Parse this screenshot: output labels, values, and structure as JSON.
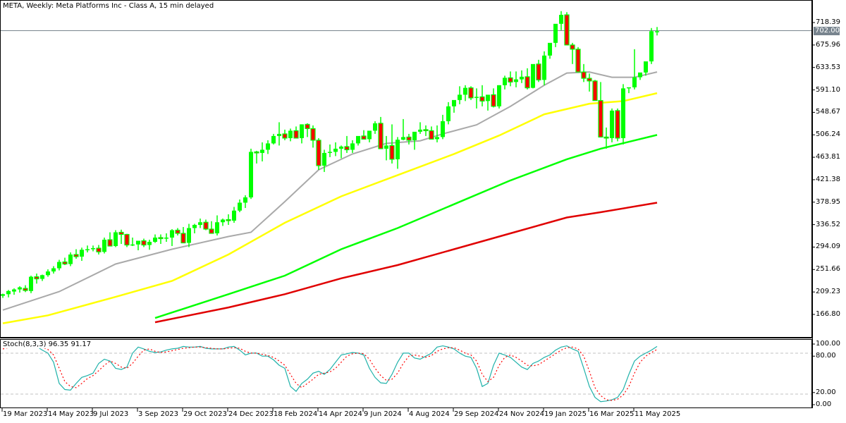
{
  "header": {
    "title": "META, Weekly:  Meta Platforms Inc - Class A, 15 min delayed"
  },
  "current_price": {
    "label": "702.00",
    "value": 702.0,
    "line_color": "#78848e"
  },
  "price_axis": {
    "ticks": [
      "718.39",
      "675.96",
      "633.53",
      "591.10",
      "548.67",
      "506.24",
      "463.81",
      "421.38",
      "378.95",
      "336.52",
      "294.09",
      "251.66",
      "209.23",
      "166.80"
    ]
  },
  "stoch_axis": {
    "ticks": [
      "100.00",
      "80.00",
      "20.00",
      "0.00"
    ]
  },
  "time_axis": {
    "ticks": [
      "19 Mar 2023",
      "14 May 2023",
      "9 Jul 2023",
      "3 Sep 2023",
      "29 Oct 2023",
      "24 Dec 2023",
      "18 Feb 2024",
      "14 Apr 2024",
      "9 Jun 2024",
      "4 Aug 2024",
      "29 Sep 2024",
      "24 Nov 2024",
      "19 Jan 2025",
      "16 Mar 2025",
      "11 May 2025"
    ]
  },
  "indicator": {
    "label": "Stoch(8,3,3) 96.35 91.17",
    "main": 96.35,
    "signal": 91.17,
    "levels": [
      80,
      20
    ]
  },
  "colors": {
    "bull": "#00ff00",
    "bear_body": "#ff0000",
    "bear_outline": "#00ff00",
    "ma_fast": "#a9a9a9",
    "ma_mid": "#ffff00",
    "ma_slow": "#00ff00",
    "ma_long": "#e00000",
    "stoch_main": "#20b2aa",
    "stoch_signal": "#ff0000",
    "grid_dash": "#c0c0c0"
  },
  "chart_data": [
    {
      "type": "candlestick",
      "title": "META, Weekly: Meta Platforms Inc - Class A, 15 min delayed",
      "xlabel": "",
      "ylabel": "",
      "ylim": [
        130,
        740
      ],
      "x_start": "19 Mar 2023",
      "interval": "weekly",
      "ohlc": [
        [
          202,
          206,
          198,
          205
        ],
        [
          205,
          213,
          199,
          211
        ],
        [
          210,
          216,
          204,
          214
        ],
        [
          214,
          220,
          208,
          218
        ],
        [
          216,
          222,
          209,
          212
        ],
        [
          211,
          240,
          207,
          238
        ],
        [
          238,
          244,
          225,
          234
        ],
        [
          234,
          242,
          230,
          241
        ],
        [
          241,
          252,
          238,
          248
        ],
        [
          248,
          258,
          244,
          254
        ],
        [
          254,
          270,
          250,
          266
        ],
        [
          266,
          274,
          260,
          262
        ],
        [
          262,
          284,
          258,
          280
        ],
        [
          280,
          290,
          272,
          276
        ],
        [
          276,
          293,
          268,
          289
        ],
        [
          289,
          297,
          284,
          290
        ],
        [
          290,
          297,
          286,
          292
        ],
        [
          292,
          298,
          280,
          285
        ],
        [
          285,
          312,
          282,
          308
        ],
        [
          308,
          322,
          302,
          296
        ],
        [
          296,
          326,
          294,
          322
        ],
        [
          322,
          327,
          300,
          318
        ],
        [
          318,
          319,
          294,
          298
        ],
        [
          298,
          312,
          296,
          299
        ],
        [
          299,
          306,
          288,
          306
        ],
        [
          306,
          310,
          294,
          298
        ],
        [
          298,
          308,
          289,
          304
        ],
        [
          304,
          318,
          302,
          312
        ],
        [
          312,
          318,
          300,
          310
        ],
        [
          310,
          320,
          304,
          312
        ],
        [
          312,
          328,
          296,
          326
        ],
        [
          326,
          330,
          316,
          320
        ],
        [
          320,
          332,
          314,
          302
        ],
        [
          302,
          338,
          294,
          330
        ],
        [
          330,
          338,
          320,
          336
        ],
        [
          336,
          348,
          330,
          341
        ],
        [
          341,
          346,
          326,
          328
        ],
        [
          328,
          343,
          320,
          320
        ],
        [
          320,
          354,
          316,
          341
        ],
        [
          341,
          348,
          334,
          346
        ],
        [
          346,
          356,
          336,
          344
        ],
        [
          344,
          370,
          340,
          363
        ],
        [
          363,
          384,
          360,
          378
        ],
        [
          378,
          392,
          368,
          388
        ],
        [
          388,
          480,
          385,
          474
        ],
        [
          474,
          476,
          452,
          472
        ],
        [
          472,
          492,
          456,
          478
        ],
        [
          478,
          496,
          470,
          490
        ],
        [
          490,
          508,
          488,
          504
        ],
        [
          504,
          530,
          486,
          508
        ],
        [
          508,
          516,
          496,
          500
        ],
        [
          500,
          518,
          494,
          514
        ],
        [
          514,
          522,
          502,
          500
        ],
        [
          500,
          526,
          490,
          526
        ],
        [
          526,
          528,
          502,
          518
        ],
        [
          518,
          524,
          482,
          496
        ],
        [
          496,
          500,
          440,
          448
        ],
        [
          448,
          478,
          436,
          472
        ],
        [
          472,
          488,
          464,
          474
        ],
        [
          474,
          492,
          466,
          480
        ],
        [
          480,
          486,
          462,
          484
        ],
        [
          484,
          504,
          472,
          478
        ],
        [
          478,
          496,
          472,
          490
        ],
        [
          490,
          502,
          486,
          504
        ],
        [
          504,
          515,
          498,
          498
        ],
        [
          498,
          512,
          492,
          514
        ],
        [
          514,
          532,
          508,
          528
        ],
        [
          528,
          540,
          498,
          480
        ],
        [
          480,
          504,
          458,
          486
        ],
        [
          486,
          526,
          452,
          460
        ],
        [
          460,
          502,
          442,
          497
        ],
        [
          497,
          536,
          496,
          502
        ],
        [
          502,
          508,
          488,
          496
        ],
        [
          496,
          500,
          478,
          512
        ],
        [
          512,
          530,
          508,
          516
        ],
        [
          516,
          524,
          504,
          514
        ],
        [
          514,
          522,
          498,
          498
        ],
        [
          498,
          524,
          492,
          502
        ],
        [
          502,
          544,
          498,
          532
        ],
        [
          532,
          568,
          526,
          560
        ],
        [
          560,
          570,
          548,
          572
        ],
        [
          572,
          598,
          564,
          582
        ],
        [
          582,
          600,
          570,
          595
        ],
        [
          595,
          598,
          572,
          576
        ],
        [
          576,
          594,
          556,
          578
        ],
        [
          578,
          600,
          560,
          570
        ],
        [
          570,
          580,
          552,
          582
        ],
        [
          582,
          594,
          558,
          560
        ],
        [
          560,
          600,
          556,
          600
        ],
        [
          600,
          618,
          592,
          614
        ],
        [
          614,
          626,
          598,
          606
        ],
        [
          606,
          626,
          596,
          611
        ],
        [
          611,
          628,
          604,
          616
        ],
        [
          616,
          632,
          592,
          595
        ],
        [
          595,
          634,
          594,
          640
        ],
        [
          640,
          648,
          606,
          610
        ],
        [
          610,
          664,
          600,
          656
        ],
        [
          656,
          676,
          650,
          680
        ],
        [
          680,
          708,
          672,
          716
        ],
        [
          716,
          740,
          704,
          733
        ],
        [
          733,
          738,
          710,
          676
        ],
        [
          676,
          680,
          640,
          668
        ],
        [
          668,
          672,
          634,
          625
        ],
        [
          625,
          640,
          606,
          613
        ],
        [
          613,
          622,
          588,
          608
        ],
        [
          608,
          610,
          584,
          571
        ],
        [
          571,
          606,
          566,
          502
        ],
        [
          502,
          520,
          480,
          500
        ],
        [
          500,
          556,
          492,
          552
        ],
        [
          552,
          556,
          494,
          500
        ],
        [
          500,
          602,
          488,
          594
        ],
        [
          594,
          596,
          585,
          596
        ],
        [
          596,
          668,
          592,
          615
        ],
        [
          615,
          622,
          610,
          624
        ],
        [
          624,
          640,
          618,
          645
        ],
        [
          645,
          708,
          640,
          702
        ],
        [
          702,
          710,
          694,
          702
        ]
      ],
      "series": [
        {
          "name": "MA fast (gray)",
          "color": "#a9a9a9",
          "start_index": 0,
          "values_desc": "from ~175 rising to ~625"
        },
        {
          "name": "MA mid (yellow)",
          "color": "#ffff00",
          "start_index": 0,
          "values_desc": "from ~150 rising to ~585"
        },
        {
          "name": "MA slow (green)",
          "color": "#00ff00",
          "start_index": 27,
          "values_desc": "from ~160 rising to ~506"
        },
        {
          "name": "MA long (red)",
          "color": "#e00000",
          "start_index": 27,
          "values_desc": "from ~153 rising to ~378"
        }
      ],
      "ma_points": {
        "gray": [
          [
            0,
            175
          ],
          [
            10,
            210
          ],
          [
            20,
            262
          ],
          [
            30,
            290
          ],
          [
            40,
            314
          ],
          [
            44,
            322
          ],
          [
            50,
            380
          ],
          [
            56,
            440
          ],
          [
            62,
            470
          ],
          [
            68,
            490
          ],
          [
            74,
            495
          ],
          [
            78,
            508
          ],
          [
            84,
            525
          ],
          [
            90,
            560
          ],
          [
            96,
            600
          ],
          [
            100,
            623
          ],
          [
            104,
            625
          ],
          [
            108,
            615
          ],
          [
            112,
            615
          ],
          [
            116,
            625
          ]
        ],
        "yellow": [
          [
            0,
            150
          ],
          [
            8,
            165
          ],
          [
            20,
            200
          ],
          [
            30,
            230
          ],
          [
            40,
            280
          ],
          [
            50,
            340
          ],
          [
            60,
            390
          ],
          [
            70,
            430
          ],
          [
            80,
            470
          ],
          [
            88,
            505
          ],
          [
            96,
            545
          ],
          [
            104,
            565
          ],
          [
            110,
            570
          ],
          [
            116,
            585
          ]
        ],
        "green": [
          [
            27,
            160
          ],
          [
            40,
            205
          ],
          [
            50,
            240
          ],
          [
            60,
            290
          ],
          [
            70,
            330
          ],
          [
            80,
            375
          ],
          [
            90,
            420
          ],
          [
            100,
            460
          ],
          [
            106,
            480
          ],
          [
            116,
            506
          ]
        ],
        "red": [
          [
            27,
            152
          ],
          [
            40,
            180
          ],
          [
            50,
            205
          ],
          [
            60,
            235
          ],
          [
            70,
            260
          ],
          [
            80,
            290
          ],
          [
            90,
            320
          ],
          [
            100,
            350
          ],
          [
            106,
            360
          ],
          [
            116,
            378
          ]
        ]
      }
    },
    {
      "type": "line",
      "title": "Stoch(8,3,3)",
      "ylim": [
        0,
        100
      ],
      "levels": [
        20,
        80
      ],
      "series": [
        {
          "name": "%K",
          "color": "#20b2aa",
          "values": [
            95,
            97,
            99,
            100,
            99,
            98,
            96,
            90,
            85,
            70,
            35,
            25,
            24,
            35,
            45,
            48,
            52,
            68,
            75,
            72,
            60,
            58,
            62,
            85,
            95,
            92,
            88,
            86,
            87,
            90,
            92,
            93,
            96,
            95,
            95,
            96,
            93,
            92,
            92,
            92,
            95,
            96,
            90,
            82,
            85,
            85,
            80,
            80,
            74,
            65,
            60,
            30,
            22,
            35,
            42,
            52,
            55,
            50,
            58,
            70,
            82,
            84,
            86,
            85,
            82,
            60,
            45,
            36,
            35,
            50,
            70,
            85,
            85,
            77,
            75,
            80,
            85,
            95,
            97,
            95,
            92,
            85,
            80,
            78,
            60,
            30,
            35,
            65,
            85,
            82,
            78,
            70,
            62,
            58,
            68,
            72,
            78,
            82,
            90,
            95,
            97,
            92,
            88,
            60,
            30,
            12,
            5,
            6,
            8,
            12,
            25,
            50,
            72,
            80,
            85,
            90,
            96
          ]
        },
        {
          "name": "%D",
          "color": "#ff0000",
          "values": [
            92,
            94,
            96,
            98,
            99,
            98,
            97,
            95,
            91,
            82,
            60,
            38,
            30,
            28,
            35,
            43,
            48,
            56,
            65,
            72,
            68,
            62,
            60,
            68,
            80,
            90,
            92,
            88,
            86,
            87,
            89,
            91,
            93,
            94,
            95,
            95,
            94,
            93,
            92,
            92,
            93,
            94,
            93,
            88,
            85,
            85,
            83,
            81,
            78,
            72,
            65,
            50,
            35,
            28,
            35,
            42,
            50,
            52,
            54,
            60,
            70,
            80,
            84,
            85,
            84,
            75,
            60,
            48,
            40,
            42,
            52,
            68,
            80,
            82,
            80,
            78,
            81,
            88,
            92,
            94,
            94,
            90,
            85,
            82,
            72,
            50,
            38,
            45,
            65,
            78,
            82,
            78,
            72,
            65,
            64,
            66,
            72,
            78,
            84,
            90,
            94,
            95,
            92,
            80,
            55,
            28,
            15,
            8,
            7,
            9,
            16,
            30,
            52,
            70,
            80,
            86,
            91
          ]
        }
      ]
    }
  ]
}
